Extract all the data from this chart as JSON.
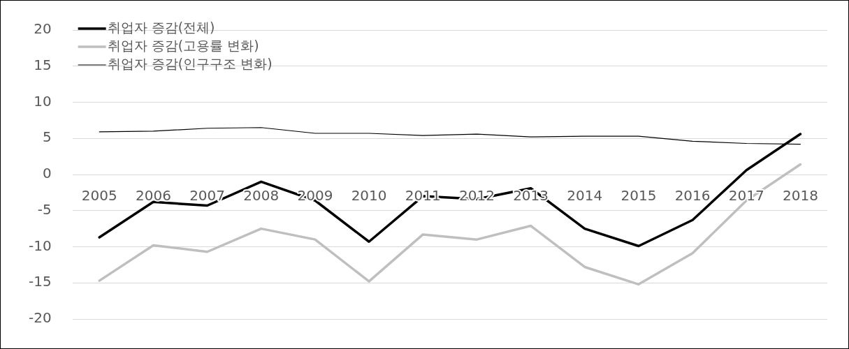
{
  "chart_data": {
    "type": "line",
    "categories": [
      "2005",
      "2006",
      "2007",
      "2008",
      "2009",
      "2010",
      "2011",
      "2012",
      "2013",
      "2014",
      "2015",
      "2016",
      "2017",
      "2018"
    ],
    "series": [
      {
        "name": "취업자 증감(전체)",
        "color": "#000000",
        "values": [
          -8.7,
          -3.8,
          -4.3,
          -1.0,
          -3.6,
          -9.3,
          -3.0,
          -3.4,
          -1.9,
          -7.5,
          -9.9,
          -6.3,
          0.6,
          5.6
        ]
      },
      {
        "name": "취업자 증감(고용률 변화)",
        "color": "#bfbfbf",
        "values": [
          -14.7,
          -9.8,
          -10.7,
          -7.5,
          -9.0,
          -14.8,
          -8.3,
          -9.0,
          -7.1,
          -12.8,
          -15.2,
          -10.9,
          -3.6,
          1.4
        ]
      },
      {
        "name": "취업자 증감(인구구조 변화)",
        "color": "#000000",
        "values": [
          5.9,
          6.0,
          6.4,
          6.5,
          5.7,
          5.7,
          5.4,
          5.6,
          5.2,
          5.3,
          5.3,
          4.6,
          4.3,
          4.2
        ]
      }
    ],
    "ylim": [
      -20,
      20
    ],
    "yticks": [
      -20,
      -15,
      -10,
      -5,
      0,
      5,
      10,
      15,
      20
    ],
    "grid": "y",
    "legend": "top left",
    "marker": "none",
    "line_style": "solid"
  }
}
